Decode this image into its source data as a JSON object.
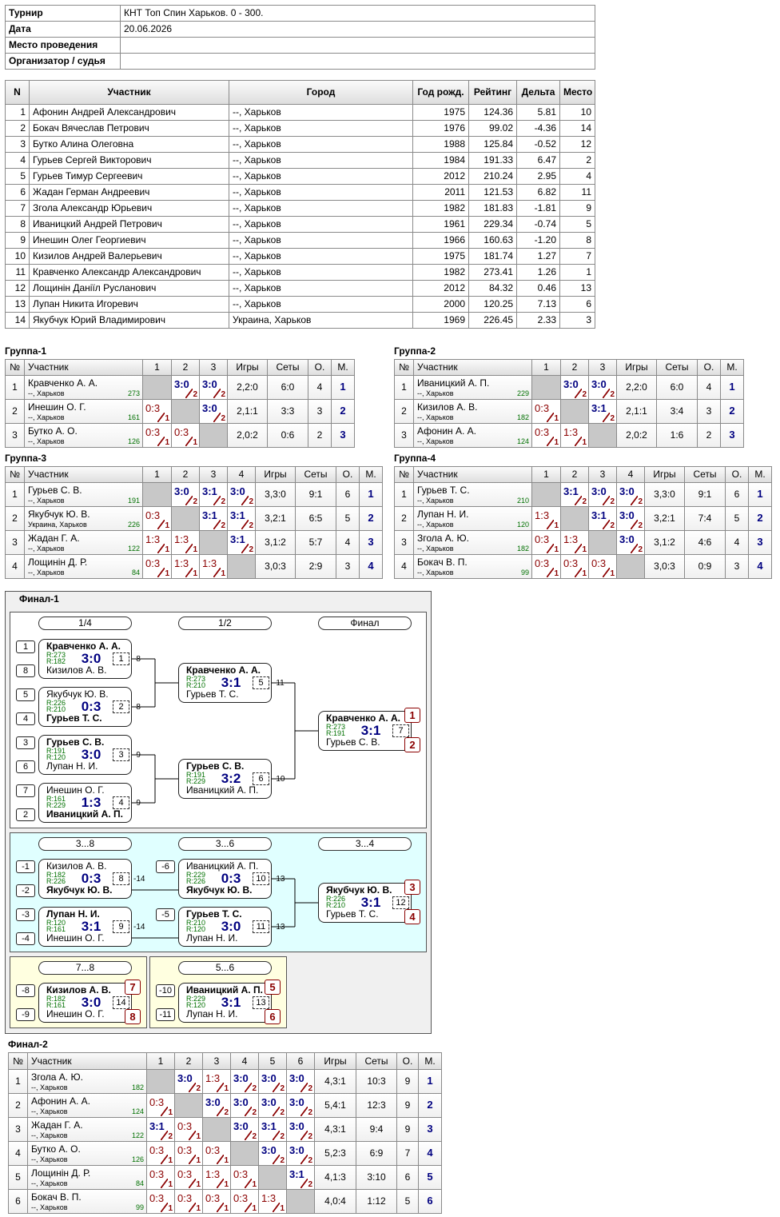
{
  "info": [
    {
      "label": "Турнир",
      "value": "КНТ Топ Спин Харьков. 0 - 300."
    },
    {
      "label": "Дата",
      "value": "20.06.2026"
    },
    {
      "label": "Место проведения"
    },
    {
      "label": "Организатор / судья"
    }
  ],
  "participants": {
    "header": [
      "N",
      "Участник",
      "Город",
      "Год рожд.",
      "Рейтинг",
      "Дельта",
      "Место"
    ],
    "rows": [
      [
        "1",
        "Афонин Андрей Александрович",
        "--, Харьков",
        "1975",
        "124.36",
        "5.81",
        "10"
      ],
      [
        "2",
        "Бокач Вячеслав Петрович",
        "--, Харьков",
        "1976",
        "99.02",
        "-4.36",
        "14"
      ],
      [
        "3",
        "Бутко Алина Олеговна",
        "--, Харьков",
        "1988",
        "125.84",
        "-0.52",
        "12"
      ],
      [
        "4",
        "Гурьев Сергей Викторович",
        "--, Харьков",
        "1984",
        "191.33",
        "6.47",
        "2"
      ],
      [
        "5",
        "Гурьев Тимур Сергеевич",
        "--, Харьков",
        "2012",
        "210.24",
        "2.95",
        "4"
      ],
      [
        "6",
        "Жадан Герман Андреевич",
        "--, Харьков",
        "2011",
        "121.53",
        "6.82",
        "11"
      ],
      [
        "7",
        "Згола Александр Юрьевич",
        "--, Харьков",
        "1982",
        "181.83",
        "-1.81",
        "9"
      ],
      [
        "8",
        "Иваницкий Андрей Петрович",
        "--, Харьков",
        "1961",
        "229.34",
        "-0.74",
        "5"
      ],
      [
        "9",
        "Инешин Олег Георгиевич",
        "--, Харьков",
        "1966",
        "160.63",
        "-1.20",
        "8"
      ],
      [
        "10",
        "Кизилов Андрей Валерьевич",
        "--, Харьков",
        "1975",
        "181.74",
        "1.27",
        "7"
      ],
      [
        "11",
        "Кравченко Александр Александрович",
        "--, Харьков",
        "1982",
        "273.41",
        "1.26",
        "1"
      ],
      [
        "12",
        "Лощинін Даніїл Русланович",
        "--, Харьков",
        "2012",
        "84.32",
        "0.46",
        "13"
      ],
      [
        "13",
        "Лупан Никита Игоревич",
        "--, Харьков",
        "2000",
        "120.25",
        "7.13",
        "6"
      ],
      [
        "14",
        "Якубчук Юрий Владимирович",
        "Украина, Харьков",
        "1969",
        "226.45",
        "2.33",
        "3"
      ]
    ]
  },
  "groups": [
    {
      "title": "Группа-1",
      "header": [
        "№",
        "Участник",
        "1",
        "2",
        "3",
        "Игры",
        "Сеты",
        "О.",
        "М."
      ],
      "rows": [
        {
          "n": "1",
          "name": "Кравченко А. А.",
          "city": "--, Харьков",
          "rating": "273",
          "cells": [
            null,
            [
              "3:0",
              "2"
            ],
            [
              "3:0",
              "2"
            ]
          ],
          "games": "2,2:0",
          "sets": "6:0",
          "points": "4",
          "place": "1"
        },
        {
          "n": "2",
          "name": "Инешин О. Г.",
          "city": "--, Харьков",
          "rating": "161",
          "cells": [
            [
              "0:3",
              "1"
            ],
            null,
            [
              "3:0",
              "2"
            ]
          ],
          "games": "2,1:1",
          "sets": "3:3",
          "points": "3",
          "place": "2"
        },
        {
          "n": "3",
          "name": "Бутко А. О.",
          "city": "--, Харьков",
          "rating": "126",
          "cells": [
            [
              "0:3",
              "1"
            ],
            [
              "0:3",
              "1"
            ],
            null
          ],
          "games": "2,0:2",
          "sets": "0:6",
          "points": "2",
          "place": "3"
        }
      ]
    },
    {
      "title": "Группа-2",
      "header": [
        "№",
        "Участник",
        "1",
        "2",
        "3",
        "Игры",
        "Сеты",
        "О.",
        "М."
      ],
      "rows": [
        {
          "n": "1",
          "name": "Иваницкий А. П.",
          "city": "--, Харьков",
          "rating": "229",
          "cells": [
            null,
            [
              "3:0",
              "2"
            ],
            [
              "3:0",
              "2"
            ]
          ],
          "games": "2,2:0",
          "sets": "6:0",
          "points": "4",
          "place": "1"
        },
        {
          "n": "2",
          "name": "Кизилов А. В.",
          "city": "--, Харьков",
          "rating": "182",
          "cells": [
            [
              "0:3",
              "1"
            ],
            null,
            [
              "3:1",
              "2"
            ]
          ],
          "games": "2,1:1",
          "sets": "3:4",
          "points": "3",
          "place": "2"
        },
        {
          "n": "3",
          "name": "Афонин А. А.",
          "city": "--, Харьков",
          "rating": "124",
          "cells": [
            [
              "0:3",
              "1"
            ],
            [
              "1:3",
              "1"
            ],
            null
          ],
          "games": "2,0:2",
          "sets": "1:6",
          "points": "2",
          "place": "3"
        }
      ]
    },
    {
      "title": "Группа-3",
      "header": [
        "№",
        "Участник",
        "1",
        "2",
        "3",
        "4",
        "Игры",
        "Сеты",
        "О.",
        "М."
      ],
      "rows": [
        {
          "n": "1",
          "name": "Гурьев С. В.",
          "city": "--, Харьков",
          "rating": "191",
          "cells": [
            null,
            [
              "3:0",
              "2"
            ],
            [
              "3:1",
              "2"
            ],
            [
              "3:0",
              "2"
            ]
          ],
          "games": "3,3:0",
          "sets": "9:1",
          "points": "6",
          "place": "1"
        },
        {
          "n": "2",
          "name": "Якубчук Ю. В.",
          "city": "Украина, Харьков",
          "rating": "226",
          "cells": [
            [
              "0:3",
              "1"
            ],
            null,
            [
              "3:1",
              "2"
            ],
            [
              "3:1",
              "2"
            ]
          ],
          "games": "3,2:1",
          "sets": "6:5",
          "points": "5",
          "place": "2"
        },
        {
          "n": "3",
          "name": "Жадан Г. А.",
          "city": "--, Харьков",
          "rating": "122",
          "cells": [
            [
              "1:3",
              "1"
            ],
            [
              "1:3",
              "1"
            ],
            null,
            [
              "3:1",
              "2"
            ]
          ],
          "games": "3,1:2",
          "sets": "5:7",
          "points": "4",
          "place": "3"
        },
        {
          "n": "4",
          "name": "Лощинін Д. Р.",
          "city": "--, Харьков",
          "rating": "84",
          "cells": [
            [
              "0:3",
              "1"
            ],
            [
              "1:3",
              "1"
            ],
            [
              "1:3",
              "1"
            ],
            null
          ],
          "games": "3,0:3",
          "sets": "2:9",
          "points": "3",
          "place": "4"
        }
      ]
    },
    {
      "title": "Группа-4",
      "header": [
        "№",
        "Участник",
        "1",
        "2",
        "3",
        "4",
        "Игры",
        "Сеты",
        "О.",
        "М."
      ],
      "rows": [
        {
          "n": "1",
          "name": "Гурьев Т. С.",
          "city": "--, Харьков",
          "rating": "210",
          "cells": [
            null,
            [
              "3:1",
              "2"
            ],
            [
              "3:0",
              "2"
            ],
            [
              "3:0",
              "2"
            ]
          ],
          "games": "3,3:0",
          "sets": "9:1",
          "points": "6",
          "place": "1"
        },
        {
          "n": "2",
          "name": "Лупан Н. И.",
          "city": "--, Харьков",
          "rating": "120",
          "cells": [
            [
              "1:3",
              "1"
            ],
            null,
            [
              "3:1",
              "2"
            ],
            [
              "3:0",
              "2"
            ]
          ],
          "games": "3,2:1",
          "sets": "7:4",
          "points": "5",
          "place": "2"
        },
        {
          "n": "3",
          "name": "Згола А. Ю.",
          "city": "--, Харьков",
          "rating": "182",
          "cells": [
            [
              "0:3",
              "1"
            ],
            [
              "1:3",
              "1"
            ],
            null,
            [
              "3:0",
              "2"
            ]
          ],
          "games": "3,1:2",
          "sets": "4:6",
          "points": "4",
          "place": "3"
        },
        {
          "n": "4",
          "name": "Бокач В. П.",
          "city": "--, Харьков",
          "rating": "99",
          "cells": [
            [
              "0:3",
              "1"
            ],
            [
              "0:3",
              "1"
            ],
            [
              "0:3",
              "1"
            ],
            null
          ],
          "games": "3,0:3",
          "sets": "0:9",
          "points": "3",
          "place": "4"
        }
      ]
    }
  ],
  "final1": {
    "title": "Финал-1",
    "rounds": [
      [
        "1/4",
        "1/2",
        "Финал"
      ],
      [
        "3...8",
        "3...6",
        "3...4"
      ],
      [
        "7...8"
      ],
      [
        "5...6"
      ]
    ],
    "matches": [
      {
        "top": {
          "name": "Кравченко А. А.",
          "rating": "R:273"
        },
        "bottom": {
          "name": "Кизилов А. В.",
          "rating": "R:182"
        },
        "score": "3:0",
        "num": "1",
        "loser": "-8",
        "seeds": [
          "1",
          "8"
        ]
      },
      {
        "top": {
          "name": "Якубчук Ю. В.",
          "rating": "R:226"
        },
        "bottom": {
          "name": "Гурьев Т. С.",
          "rating": "R:210"
        },
        "score": "0:3",
        "num": "2",
        "loser": "-8",
        "seeds": [
          "5",
          "4"
        ]
      },
      {
        "top": {
          "name": "Гурьев С. В.",
          "rating": "R:191"
        },
        "bottom": {
          "name": "Лупан Н. И.",
          "rating": "R:120"
        },
        "score": "3:0",
        "num": "3",
        "loser": "-9",
        "seeds": [
          "3",
          "6"
        ]
      },
      {
        "top": {
          "name": "Инешин О. Г.",
          "rating": "R:161"
        },
        "bottom": {
          "name": "Иваницкий А. П.",
          "rating": "R:229"
        },
        "score": "1:3",
        "num": "4",
        "loser": "-9",
        "seeds": [
          "7",
          "2"
        ]
      },
      {
        "top": {
          "name": "Кравченко А. А.",
          "rating": "R:273"
        },
        "bottom": {
          "name": "Гурьев Т. С.",
          "rating": "R:210"
        },
        "score": "3:1",
        "num": "5",
        "loser": "-11"
      },
      {
        "top": {
          "name": "Гурьев С. В.",
          "rating": "R:191"
        },
        "bottom": {
          "name": "Иваницкий А. П.",
          "rating": "R:229"
        },
        "score": "3:2",
        "num": "6",
        "loser": "-10"
      },
      {
        "top": {
          "name": "Кравченко А. А.",
          "rating": "R:273"
        },
        "bottom": {
          "name": "Гурьев С. В.",
          "rating": "R:191"
        },
        "score": "3:1",
        "num": "7",
        "places": [
          "1",
          "2"
        ]
      },
      {
        "top": {
          "name": "Кизилов А. В.",
          "rating": "R:182"
        },
        "bottom": {
          "name": "Якубчук Ю. В.",
          "rating": "R:226"
        },
        "score": "0:3",
        "num": "8",
        "loser": "-14",
        "seeds": [
          "-1",
          "-2"
        ]
      },
      {
        "top": {
          "name": "Лупан Н. И.",
          "rating": "R:120"
        },
        "bottom": {
          "name": "Инешин О. Г.",
          "rating": "R:161"
        },
        "score": "3:1",
        "num": "9",
        "loser": "-14",
        "seeds": [
          "-3",
          "-4"
        ]
      },
      {
        "top": {
          "name": "Иваницкий А. П.",
          "rating": "R:229"
        },
        "bottom": {
          "name": "Якубчук Ю. В.",
          "rating": "R:226"
        },
        "score": "0:3",
        "num": "10",
        "loser": "-13",
        "seeds": [
          "-6"
        ]
      },
      {
        "top": {
          "name": "Гурьев Т. С.",
          "rating": "R:210"
        },
        "bottom": {
          "name": "Лупан Н. И.",
          "rating": "R:120"
        },
        "score": "3:0",
        "num": "11",
        "loser": "-13",
        "seeds": [
          "-5"
        ]
      },
      {
        "top": {
          "name": "Якубчук Ю. В.",
          "rating": "R:226"
        },
        "bottom": {
          "name": "Гурьев Т. С.",
          "rating": "R:210"
        },
        "score": "3:1",
        "num": "12",
        "places": [
          "3",
          "4"
        ]
      },
      {
        "top": {
          "name": "Иваницкий А. П.",
          "rating": "R:229"
        },
        "bottom": {
          "name": "Лупан Н. И.",
          "rating": "R:120"
        },
        "score": "3:1",
        "num": "13",
        "seeds": [
          "-10",
          "-11"
        ],
        "places": [
          "5",
          "6"
        ]
      },
      {
        "top": {
          "name": "Кизилов А. В.",
          "rating": "R:182"
        },
        "bottom": {
          "name": "Инешин О. Г.",
          "rating": "R:161"
        },
        "score": "3:0",
        "num": "14",
        "seeds": [
          "-8",
          "-9"
        ],
        "places": [
          "7",
          "8"
        ]
      }
    ]
  },
  "final2": {
    "title": "Финал-2",
    "header": [
      "№",
      "Участник",
      "1",
      "2",
      "3",
      "4",
      "5",
      "6",
      "Игры",
      "Сеты",
      "О.",
      "М."
    ],
    "rows": [
      {
        "n": "1",
        "name": "Згола А. Ю.",
        "city": "--, Харьков",
        "rating": "182",
        "cells": [
          null,
          [
            "3:0",
            "2"
          ],
          [
            "1:3",
            "1"
          ],
          [
            "3:0",
            "2"
          ],
          [
            "3:0",
            "2"
          ],
          [
            "3:0",
            "2"
          ]
        ],
        "games": "4,3:1",
        "sets": "10:3",
        "points": "9",
        "place": "1"
      },
      {
        "n": "2",
        "name": "Афонин А. А.",
        "city": "--, Харьков",
        "rating": "124",
        "cells": [
          [
            "0:3",
            "1"
          ],
          null,
          [
            "3:0",
            "2"
          ],
          [
            "3:0",
            "2"
          ],
          [
            "3:0",
            "2"
          ],
          [
            "3:0",
            "2"
          ]
        ],
        "games": "5,4:1",
        "sets": "12:3",
        "points": "9",
        "place": "2"
      },
      {
        "n": "3",
        "name": "Жадан Г. А.",
        "city": "--, Харьков",
        "rating": "122",
        "cells": [
          [
            "3:1",
            "2"
          ],
          [
            "0:3",
            "1"
          ],
          null,
          [
            "3:0",
            "2"
          ],
          [
            "3:1",
            "2"
          ],
          [
            "3:0",
            "2"
          ]
        ],
        "games": "4,3:1",
        "sets": "9:4",
        "points": "9",
        "place": "3"
      },
      {
        "n": "4",
        "name": "Бутко А. О.",
        "city": "--, Харьков",
        "rating": "126",
        "cells": [
          [
            "0:3",
            "1"
          ],
          [
            "0:3",
            "1"
          ],
          [
            "0:3",
            "1"
          ],
          null,
          [
            "3:0",
            "2"
          ],
          [
            "3:0",
            "2"
          ]
        ],
        "games": "5,2:3",
        "sets": "6:9",
        "points": "7",
        "place": "4"
      },
      {
        "n": "5",
        "name": "Лощинін Д. Р.",
        "city": "--, Харьков",
        "rating": "84",
        "cells": [
          [
            "0:3",
            "1"
          ],
          [
            "0:3",
            "1"
          ],
          [
            "1:3",
            "1"
          ],
          [
            "0:3",
            "1"
          ],
          null,
          [
            "3:1",
            "2"
          ]
        ],
        "games": "4,1:3",
        "sets": "3:10",
        "points": "6",
        "place": "5"
      },
      {
        "n": "6",
        "name": "Бокач В. П.",
        "city": "--, Харьков",
        "rating": "99",
        "cells": [
          [
            "0:3",
            "1"
          ],
          [
            "0:3",
            "1"
          ],
          [
            "0:3",
            "1"
          ],
          [
            "0:3",
            "1"
          ],
          [
            "1:3",
            "1"
          ],
          null
        ],
        "games": "4,0:4",
        "sets": "1:12",
        "points": "5",
        "place": "6"
      }
    ]
  }
}
